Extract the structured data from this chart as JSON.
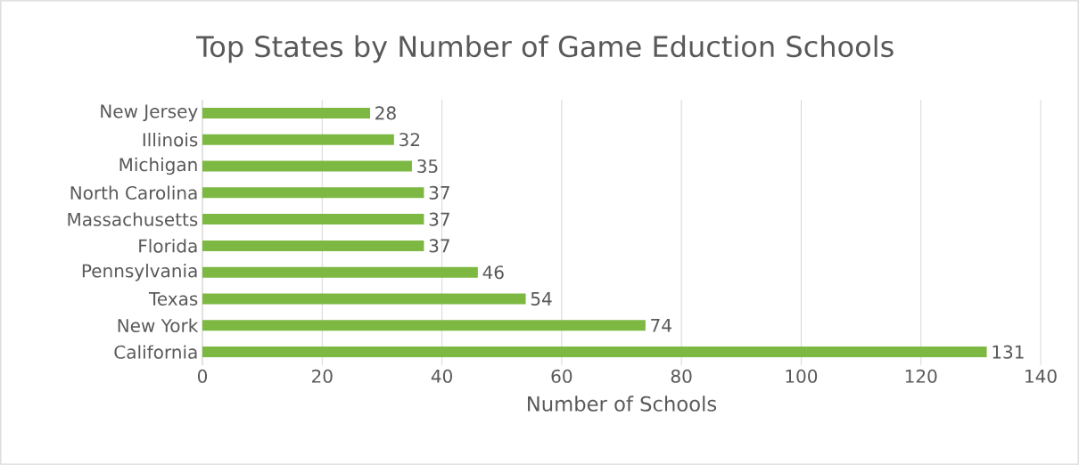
{
  "chart_data": {
    "type": "bar",
    "orientation": "horizontal",
    "title": "Top States by Number of Game Eduction Schools",
    "xlabel": "Number of Schools",
    "categories": [
      "New Jersey",
      "Illinois",
      "Michigan",
      "North Carolina",
      "Massachusetts",
      "Florida",
      "Pennsylvania",
      "Texas",
      "New York",
      "California"
    ],
    "values": [
      28,
      32,
      35,
      37,
      37,
      37,
      46,
      54,
      74,
      131
    ],
    "color": "#7cb842",
    "xlim": [
      0,
      140
    ],
    "xticks": [
      0,
      20,
      40,
      60,
      80,
      100,
      120,
      140
    ],
    "grid": "x",
    "data_labels": true
  }
}
